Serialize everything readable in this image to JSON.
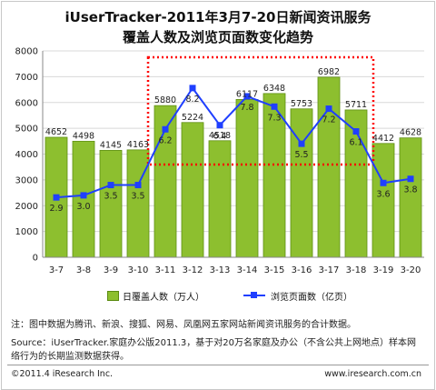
{
  "chart_data": {
    "type": "bar",
    "title": "iUserTracker-2011年3月7-20日新闻资讯服务",
    "subtitle": "覆盖人数及浏览页面数变化趋势",
    "categories": [
      "3-7",
      "3-8",
      "3-9",
      "3-10",
      "3-11",
      "3-12",
      "3-13",
      "3-14",
      "3-15",
      "3-16",
      "3-17",
      "3-18",
      "3-19",
      "3-20"
    ],
    "series": [
      {
        "name": "日覆盖人数（万人）",
        "type": "bar",
        "color": "#8dbf2f",
        "values": [
          4652,
          4498,
          4145,
          4163,
          5880,
          5224,
          4518,
          6117,
          6348,
          5753,
          6982,
          5711,
          4412,
          4628
        ],
        "labels": [
          "4652",
          "4498",
          "4145",
          "4163",
          "5880",
          "5224",
          "4518",
          "6117",
          "6348",
          "5753",
          "6982",
          "5711",
          "4412",
          "4628"
        ]
      },
      {
        "name": "浏览页面数（亿页）",
        "type": "line",
        "color": "#1f3fff",
        "values": [
          2.9,
          3.0,
          3.5,
          3.5,
          6.2,
          8.2,
          6.4,
          7.8,
          7.3,
          5.5,
          7.2,
          6.1,
          3.6,
          3.8
        ],
        "labels": [
          "2.9",
          "3.0",
          "3.5",
          "3.5",
          "6.2",
          "8.2",
          "6.4",
          "7.8",
          "7.3",
          "5.5",
          "7.2",
          "6.1",
          "3.6",
          "3.8"
        ]
      }
    ],
    "y_ticks": [
      "0",
      "1000",
      "2000",
      "3000",
      "4000",
      "5000",
      "6000",
      "7000",
      "8000"
    ],
    "ylim": [
      0,
      8000
    ],
    "ylim_right": [
      0,
      10
    ],
    "grid": true,
    "legend_position": "bottom",
    "highlight_box": {
      "from": "3-11",
      "to": "3-18",
      "color": "#ff0000",
      "style": "dotted"
    }
  },
  "notes": {
    "note": "注：图中数据为腾讯、新浪、搜狐、网易、凤凰网五家网站新闻资讯服务的合计数据。",
    "source_line1": "Source：iUserTracker.家庭办公版2011.3，基于对20万名家庭及办公（不含公共上网地点）样本网",
    "source_line2": "络行为的长期监测数据获得。"
  },
  "footer": {
    "copyright": "©2011.4 iResearch Inc.",
    "website": "www.iresearch.com.cn"
  },
  "colors": {
    "bar": "#8dbf2f",
    "line": "#1f3fff",
    "box": "#ff0000",
    "grid": "#d8d8d8"
  }
}
